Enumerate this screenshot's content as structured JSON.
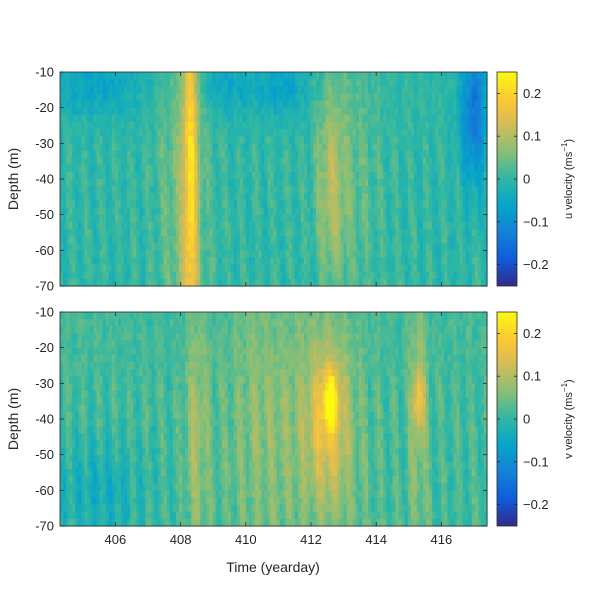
{
  "chart_data": [
    {
      "type": "heatmap",
      "title": "",
      "xlabel": "",
      "ylabel": "Depth (m)",
      "xlim": [
        404.3,
        417.4
      ],
      "ylim": [
        -70,
        -10
      ],
      "xticks": [
        406,
        408,
        410,
        412,
        414,
        416
      ],
      "xtick_labels": [
        "",
        "",
        "",
        "",
        "",
        ""
      ],
      "yticks": [
        -10,
        -20,
        -30,
        -40,
        -50,
        -60,
        -70
      ],
      "ytick_labels": [
        "-10",
        "-20",
        "-30",
        "-40",
        "-50",
        "-60",
        "-70"
      ],
      "colorbar": {
        "label_main": "u velocity (ms",
        "label_exp": "−1",
        "label_close": ")",
        "clim": [
          -0.25,
          0.25
        ],
        "ticks": [
          0.2,
          0.1,
          0,
          -0.1,
          -0.2
        ],
        "tick_labels": [
          "0.2",
          "0.1",
          "0",
          "−0.1",
          "−0.2"
        ],
        "colormap": "parula"
      },
      "features": [
        {
          "t": 408.3,
          "depth": -35,
          "value": 0.16,
          "note": "strong positive band, full depth"
        },
        {
          "t": 412.6,
          "depth": -38,
          "value": 0.08
        },
        {
          "t": 417.0,
          "depth": -20,
          "value": -0.14
        }
      ]
    },
    {
      "type": "heatmap",
      "title": "",
      "xlabel": "Time (yearday)",
      "ylabel": "Depth (m)",
      "xlim": [
        404.3,
        417.4
      ],
      "ylim": [
        -70,
        -10
      ],
      "xticks": [
        406,
        408,
        410,
        412,
        414,
        416
      ],
      "xtick_labels": [
        "406",
        "408",
        "410",
        "412",
        "414",
        "416"
      ],
      "yticks": [
        -10,
        -20,
        -30,
        -40,
        -50,
        -60,
        -70
      ],
      "ytick_labels": [
        "-10",
        "-20",
        "-30",
        "-40",
        "-50",
        "-60",
        "-70"
      ],
      "colorbar": {
        "label_main": "v velocity (ms",
        "label_exp": "−1",
        "label_close": ")",
        "clim": [
          -0.25,
          0.25
        ],
        "ticks": [
          0.2,
          0.1,
          0,
          -0.1,
          -0.2
        ],
        "tick_labels": [
          "0.2",
          "0.1",
          "0",
          "−0.1",
          "−0.2"
        ],
        "colormap": "parula"
      },
      "features": [
        {
          "t": 412.6,
          "depth": -35,
          "value": 0.18,
          "note": "jet core"
        },
        {
          "t": 415.3,
          "depth": -35,
          "value": 0.12
        },
        {
          "t": 408.5,
          "depth": -45,
          "value": 0.07
        }
      ]
    }
  ]
}
